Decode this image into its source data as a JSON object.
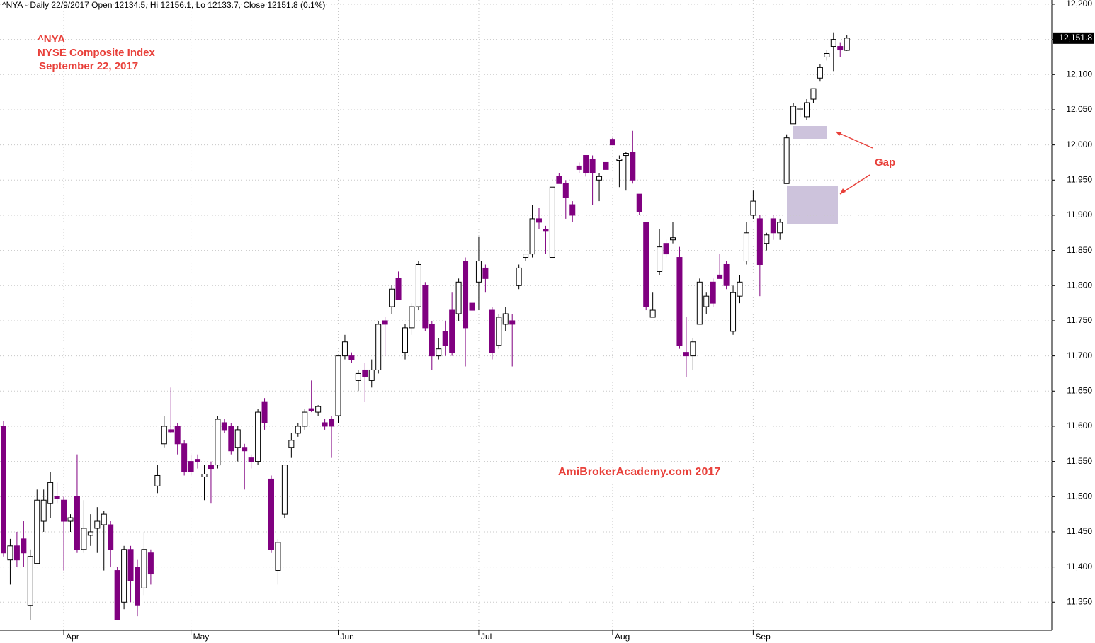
{
  "chart_data": {
    "type": "candlestick",
    "header": "^NYA - Daily 22/9/2017 Open 12134.5, Hi 12156.1, Lo 12133.7, Close 12151.8 (0.1%)",
    "title": "^NYA",
    "subtitle": "NYSE Composite Index",
    "date": "September 22, 2017",
    "watermark": "AmiBrokerAcademy.com  2017",
    "annotation": "Gap",
    "last_close_label": "12,151.8",
    "up_color": "#ffffff",
    "down_color": "#800080",
    "grid": true,
    "ylim": [
      11310,
      12206
    ],
    "yticks": [
      {
        "value": 11350,
        "label": "11,350"
      },
      {
        "value": 11400,
        "label": "11,400"
      },
      {
        "value": 11450,
        "label": "11,450"
      },
      {
        "value": 11500,
        "label": "11,500"
      },
      {
        "value": 11550,
        "label": "11,550"
      },
      {
        "value": 11600,
        "label": "11,600"
      },
      {
        "value": 11650,
        "label": "11,650"
      },
      {
        "value": 11700,
        "label": "11,700"
      },
      {
        "value": 11750,
        "label": "11,750"
      },
      {
        "value": 11800,
        "label": "11,800"
      },
      {
        "value": 11850,
        "label": "11,850"
      },
      {
        "value": 11900,
        "label": "11,900"
      },
      {
        "value": 11950,
        "label": "11,950"
      },
      {
        "value": 12000,
        "label": "12,000"
      },
      {
        "value": 12050,
        "label": "12,050"
      },
      {
        "value": 12100,
        "label": "12,100"
      },
      {
        "value": 12150,
        "label": "12,150"
      },
      {
        "value": 12200,
        "label": "12,200"
      }
    ],
    "categories": [
      null,
      null,
      null,
      null,
      null,
      null,
      null,
      null,
      null,
      "Apr",
      null,
      null,
      null,
      null,
      null,
      null,
      null,
      null,
      null,
      null,
      null,
      null,
      null,
      null,
      null,
      null,
      null,
      null,
      "May",
      null,
      null,
      null,
      null,
      null,
      null,
      null,
      null,
      null,
      null,
      null,
      null,
      null,
      null,
      null,
      null,
      null,
      null,
      null,
      null,
      null,
      "Jun",
      null,
      null,
      null,
      null,
      null,
      null,
      null,
      null,
      null,
      null,
      null,
      null,
      null,
      null,
      null,
      null,
      null,
      null,
      null,
      null,
      "Jul",
      null,
      null,
      null,
      null,
      null,
      null,
      null,
      null,
      null,
      null,
      null,
      null,
      null,
      null,
      null,
      null,
      null,
      null,
      null,
      "Aug",
      null,
      null,
      null,
      null,
      null,
      null,
      null,
      null,
      null,
      null,
      null,
      null,
      null,
      null,
      null,
      null,
      null,
      null,
      null,
      null,
      "Sep",
      null,
      null,
      null,
      null,
      null,
      null,
      null,
      null,
      null,
      null,
      null,
      null,
      null,
      null
    ],
    "open": [
      11600,
      11410,
      11430,
      11440,
      11345,
      11405,
      11465,
      11490,
      11500,
      11495,
      11465,
      11500,
      11425,
      11445,
      11455,
      11460,
      11460,
      11395,
      11350,
      11425,
      11400,
      11370,
      11420,
      11515,
      11575,
      11595,
      11600,
      11575,
      11550,
      11553,
      11528,
      11545,
      11545,
      11605,
      11600,
      11570,
      11570,
      11555,
      11550,
      11635,
      11525,
      11395,
      11475,
      11570,
      11590,
      11600,
      11625,
      11620,
      11605,
      11610,
      11615,
      11700,
      11700,
      11665,
      11680,
      11665,
      11680,
      11750,
      11770,
      11810,
      11705,
      11740,
      11770,
      11800,
      11745,
      11700,
      11735,
      11765,
      11760,
      11835,
      11775,
      11805,
      11825,
      11765,
      11715,
      11745,
      11750,
      11800,
      11840,
      11845,
      11895,
      11880,
      11840,
      11955,
      11945,
      11915,
      11970,
      11985,
      11980,
      11950,
      11975,
      12008,
      11978,
      11985,
      11990,
      11930,
      11890,
      11755,
      11820,
      11860,
      11865,
      11840,
      11705,
      11700,
      11745,
      11770,
      11805,
      11815,
      11830,
      11735,
      11785,
      11835,
      11900,
      11895,
      11860,
      11895,
      11875,
      11945,
      12030,
      12050,
      12040,
      12065,
      12095,
      12125,
      12140,
      12140,
      12134.5
    ],
    "high": [
      11608,
      11440,
      11450,
      11465,
      11425,
      11510,
      11510,
      11535,
      11520,
      11500,
      11475,
      11560,
      11495,
      11475,
      11485,
      11480,
      11465,
      11400,
      11430,
      11430,
      11410,
      11450,
      11425,
      11545,
      11615,
      11655,
      11605,
      11580,
      11560,
      11560,
      11545,
      11550,
      11615,
      11610,
      11605,
      11600,
      11575,
      11560,
      11625,
      11640,
      11530,
      11440,
      11545,
      11590,
      11605,
      11625,
      11665,
      11630,
      11610,
      11615,
      11700,
      11730,
      11705,
      11680,
      11690,
      11695,
      11750,
      11755,
      11800,
      11820,
      11745,
      11775,
      11835,
      11805,
      11750,
      11725,
      11750,
      11790,
      11810,
      11840,
      11800,
      11870,
      11830,
      11770,
      11760,
      11770,
      11760,
      11830,
      11845,
      11915,
      11910,
      11885,
      11940,
      11960,
      11950,
      11920,
      11975,
      11985,
      11985,
      11960,
      11980,
      12010,
      11985,
      11990,
      12020,
      11930,
      11890,
      11790,
      11880,
      11865,
      11890,
      11855,
      11755,
      11725,
      11810,
      11790,
      11810,
      11845,
      11835,
      11800,
      11815,
      11890,
      11935,
      11900,
      11875,
      11900,
      11895,
      12015,
      12060,
      12055,
      12065,
      12080,
      12115,
      12135,
      12160,
      12145,
      12156.1
    ],
    "low": [
      11415,
      11375,
      11400,
      11400,
      11325,
      11405,
      11450,
      11470,
      11490,
      11395,
      11450,
      11420,
      11420,
      11430,
      11420,
      11395,
      11400,
      11325,
      11340,
      11350,
      11330,
      11360,
      11375,
      11505,
      11570,
      11590,
      11560,
      11530,
      11530,
      11540,
      11495,
      11490,
      11540,
      11590,
      11560,
      11550,
      11510,
      11540,
      11545,
      11595,
      11420,
      11375,
      11470,
      11555,
      11585,
      11595,
      11620,
      11615,
      11595,
      11555,
      11605,
      11695,
      11690,
      11650,
      11635,
      11655,
      11675,
      11700,
      11760,
      11780,
      11695,
      11730,
      11765,
      11735,
      11680,
      11695,
      11700,
      11700,
      11750,
      11685,
      11760,
      11765,
      11790,
      11695,
      11710,
      11735,
      11685,
      11795,
      11835,
      11840,
      11880,
      11845,
      11840,
      11945,
      11895,
      11890,
      11960,
      11955,
      11915,
      11920,
      11965,
      12000,
      11940,
      11935,
      11945,
      11900,
      11765,
      11755,
      11815,
      11840,
      11860,
      11710,
      11670,
      11680,
      11745,
      11760,
      11770,
      11810,
      11795,
      11730,
      11775,
      11830,
      11895,
      11785,
      11850,
      11865,
      11865,
      11945,
      12030,
      12040,
      12035,
      12060,
      12090,
      12120,
      12105,
      12125,
      12133.7
    ],
    "close": [
      11420,
      11430,
      11410,
      11420,
      11415,
      11495,
      11495,
      11520,
      11497,
      11465,
      11470,
      11425,
      11455,
      11450,
      11465,
      11475,
      11425,
      11325,
      11425,
      11380,
      11345,
      11425,
      11390,
      11530,
      11600,
      11592,
      11575,
      11535,
      11535,
      11550,
      11532,
      11540,
      11610,
      11595,
      11565,
      11595,
      11565,
      11550,
      11620,
      11605,
      11425,
      11435,
      11545,
      11580,
      11600,
      11620,
      11622,
      11628,
      11600,
      11600,
      11700,
      11720,
      11695,
      11675,
      11670,
      11680,
      11745,
      11745,
      11795,
      11780,
      11740,
      11770,
      11830,
      11740,
      11700,
      11710,
      11715,
      11705,
      11805,
      11740,
      11765,
      11835,
      11810,
      11705,
      11755,
      11760,
      11745,
      11825,
      11845,
      11895,
      11890,
      11878,
      11940,
      11945,
      11925,
      11900,
      11965,
      11960,
      11960,
      11955,
      11965,
      12000,
      11980,
      11988,
      11950,
      11905,
      11770,
      11765,
      11855,
      11845,
      11868,
      11715,
      11700,
      11720,
      11805,
      11785,
      11775,
      11810,
      11800,
      11790,
      11805,
      11875,
      11920,
      11830,
      11872,
      11875,
      11890,
      12010,
      12055,
      12052,
      12060,
      12080,
      12110,
      12130,
      12150,
      12135,
      12151.8
    ]
  }
}
